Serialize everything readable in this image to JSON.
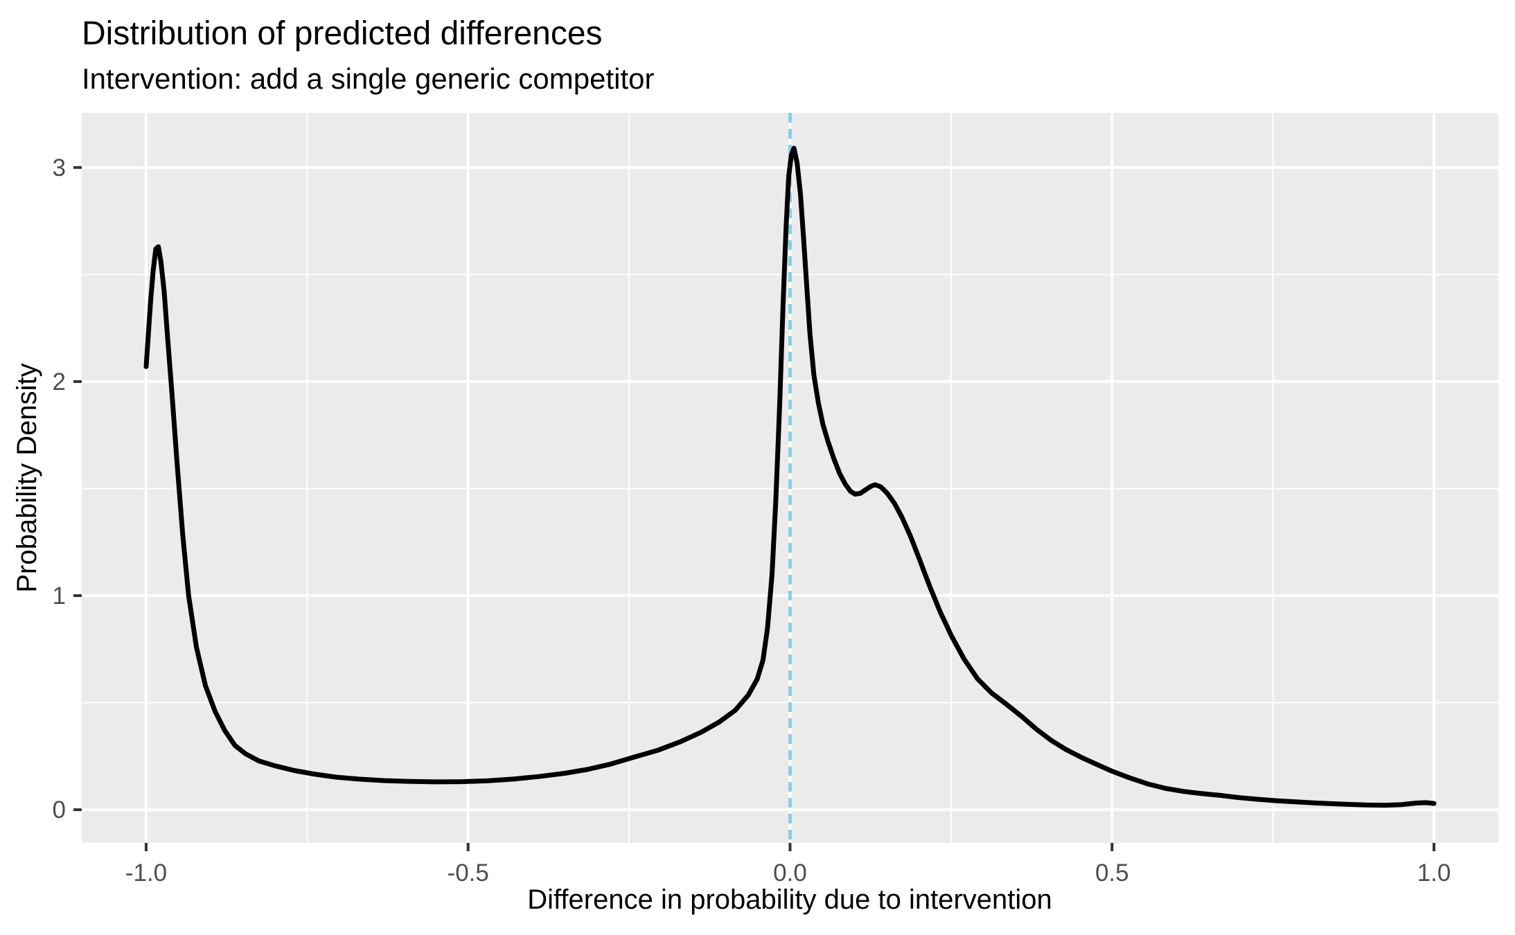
{
  "chart_data": {
    "type": "line",
    "title": "Distribution of predicted differences",
    "subtitle": "Intervention: add a single generic competitor",
    "xlabel": "Difference in probability due to intervention",
    "ylabel": "Probability Density",
    "xlim": [
      -1.1,
      1.1
    ],
    "ylim": [
      -0.155,
      3.255
    ],
    "x_ticks": [
      -1.0,
      -0.5,
      0.0,
      0.5,
      1.0
    ],
    "x_tick_labels": [
      "-1.0",
      "-0.5",
      "0.0",
      "0.5",
      "1.0"
    ],
    "x_minor_gridlines": [
      -0.75,
      -0.25,
      0.25,
      0.75
    ],
    "y_ticks": [
      0,
      1,
      2,
      3
    ],
    "y_tick_labels": [
      "0",
      "1",
      "2",
      "3"
    ],
    "y_minor_gridlines": [
      0.5,
      1.5,
      2.5
    ],
    "grid": true,
    "legend": false,
    "colors": {
      "panel_background": "#EBEBEB",
      "gridline": "#FFFFFF",
      "density_line": "#000000",
      "reference_line": "#87CEEB",
      "tick_mark": "#333333",
      "tick_text": "#4D4D4D",
      "title_text": "#000000"
    },
    "reference_line": {
      "x": 0,
      "style": "dashed",
      "color": "#87CEEB"
    },
    "series": [
      {
        "name": "density of predicted differences",
        "points": [
          [
            -1.0,
            2.07
          ],
          [
            -0.997,
            2.2
          ],
          [
            -0.993,
            2.38
          ],
          [
            -0.989,
            2.52
          ],
          [
            -0.985,
            2.62
          ],
          [
            -0.981,
            2.63
          ],
          [
            -0.977,
            2.56
          ],
          [
            -0.972,
            2.42
          ],
          [
            -0.967,
            2.22
          ],
          [
            -0.96,
            1.95
          ],
          [
            -0.952,
            1.62
          ],
          [
            -0.943,
            1.28
          ],
          [
            -0.934,
            1.0
          ],
          [
            -0.922,
            0.76
          ],
          [
            -0.908,
            0.58
          ],
          [
            -0.893,
            0.46
          ],
          [
            -0.878,
            0.37
          ],
          [
            -0.862,
            0.3
          ],
          [
            -0.845,
            0.26
          ],
          [
            -0.825,
            0.228
          ],
          [
            -0.8,
            0.205
          ],
          [
            -0.77,
            0.183
          ],
          [
            -0.74,
            0.167
          ],
          [
            -0.705,
            0.152
          ],
          [
            -0.67,
            0.143
          ],
          [
            -0.63,
            0.136
          ],
          [
            -0.59,
            0.132
          ],
          [
            -0.55,
            0.13
          ],
          [
            -0.51,
            0.131
          ],
          [
            -0.47,
            0.135
          ],
          [
            -0.43,
            0.143
          ],
          [
            -0.39,
            0.155
          ],
          [
            -0.35,
            0.17
          ],
          [
            -0.315,
            0.188
          ],
          [
            -0.28,
            0.212
          ],
          [
            -0.243,
            0.245
          ],
          [
            -0.205,
            0.278
          ],
          [
            -0.17,
            0.318
          ],
          [
            -0.138,
            0.362
          ],
          [
            -0.11,
            0.41
          ],
          [
            -0.085,
            0.465
          ],
          [
            -0.065,
            0.535
          ],
          [
            -0.051,
            0.61
          ],
          [
            -0.042,
            0.7
          ],
          [
            -0.035,
            0.85
          ],
          [
            -0.028,
            1.1
          ],
          [
            -0.022,
            1.45
          ],
          [
            -0.016,
            1.9
          ],
          [
            -0.011,
            2.35
          ],
          [
            -0.006,
            2.73
          ],
          [
            -0.002,
            2.96
          ],
          [
            0.002,
            3.06
          ],
          [
            0.006,
            3.09
          ],
          [
            0.011,
            3.02
          ],
          [
            0.016,
            2.88
          ],
          [
            0.021,
            2.67
          ],
          [
            0.026,
            2.44
          ],
          [
            0.031,
            2.22
          ],
          [
            0.037,
            2.03
          ],
          [
            0.044,
            1.9
          ],
          [
            0.051,
            1.8
          ],
          [
            0.059,
            1.72
          ],
          [
            0.068,
            1.64
          ],
          [
            0.077,
            1.57
          ],
          [
            0.086,
            1.52
          ],
          [
            0.094,
            1.487
          ],
          [
            0.101,
            1.474
          ],
          [
            0.109,
            1.478
          ],
          [
            0.117,
            1.494
          ],
          [
            0.125,
            1.51
          ],
          [
            0.132,
            1.518
          ],
          [
            0.141,
            1.508
          ],
          [
            0.151,
            1.478
          ],
          [
            0.162,
            1.432
          ],
          [
            0.174,
            1.365
          ],
          [
            0.187,
            1.278
          ],
          [
            0.201,
            1.17
          ],
          [
            0.216,
            1.05
          ],
          [
            0.233,
            0.925
          ],
          [
            0.251,
            0.81
          ],
          [
            0.27,
            0.705
          ],
          [
            0.291,
            0.612
          ],
          [
            0.313,
            0.545
          ],
          [
            0.337,
            0.49
          ],
          [
            0.36,
            0.435
          ],
          [
            0.383,
            0.375
          ],
          [
            0.405,
            0.325
          ],
          [
            0.428,
            0.282
          ],
          [
            0.452,
            0.245
          ],
          [
            0.476,
            0.212
          ],
          [
            0.5,
            0.18
          ],
          [
            0.528,
            0.148
          ],
          [
            0.556,
            0.12
          ],
          [
            0.584,
            0.099
          ],
          [
            0.612,
            0.085
          ],
          [
            0.64,
            0.075
          ],
          [
            0.668,
            0.067
          ],
          [
            0.696,
            0.057
          ],
          [
            0.724,
            0.049
          ],
          [
            0.755,
            0.042
          ],
          [
            0.79,
            0.036
          ],
          [
            0.825,
            0.03
          ],
          [
            0.86,
            0.026
          ],
          [
            0.895,
            0.022
          ],
          [
            0.925,
            0.021
          ],
          [
            0.95,
            0.024
          ],
          [
            0.972,
            0.031
          ],
          [
            0.988,
            0.033
          ],
          [
            1.0,
            0.029
          ]
        ]
      }
    ]
  }
}
